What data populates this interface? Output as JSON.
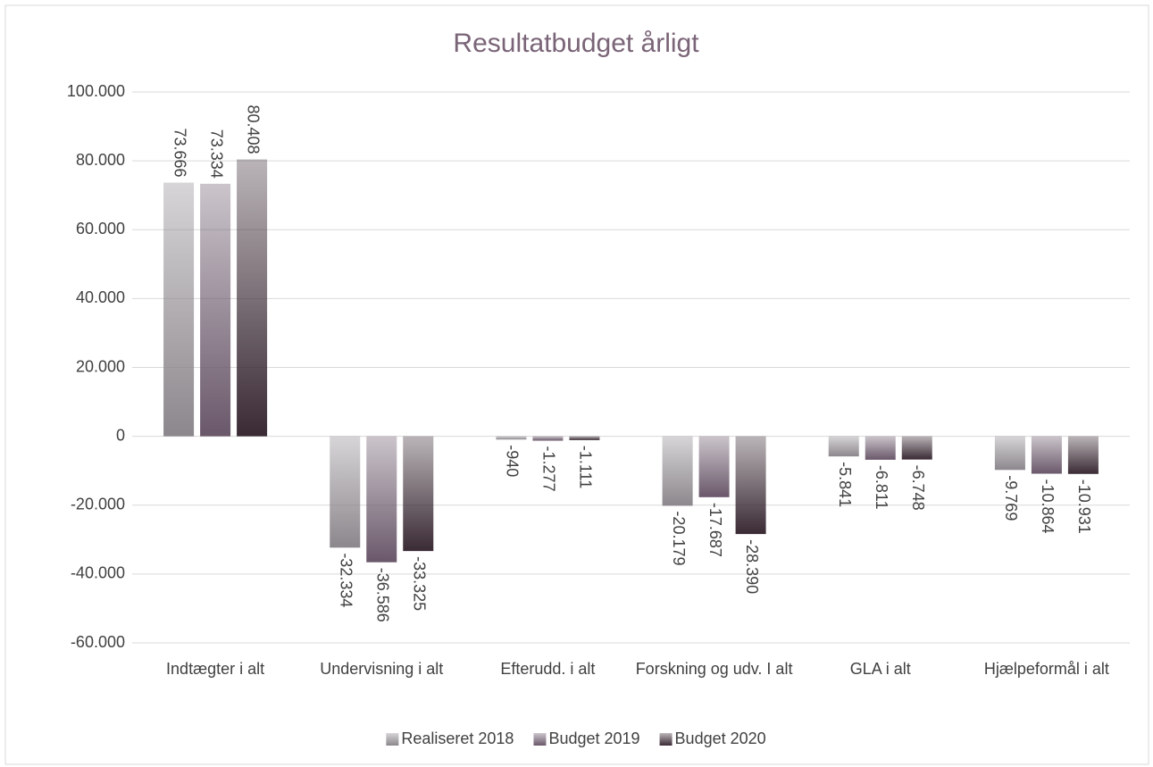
{
  "chart_data": {
    "type": "bar",
    "title": "Resultatbudget årligt",
    "categories": [
      "Indtægter i alt",
      "Undervisning i alt",
      "Efterudd.  i alt",
      "Forskning og udv. I alt",
      "GLA i alt",
      "Hjælpeformål i alt"
    ],
    "series": [
      {
        "name": "Realiseret 2018",
        "color": "#8c878c",
        "values": [
          73666,
          -32334,
          -940,
          -20179,
          -5841,
          -9769
        ],
        "value_labels": [
          "73.666",
          "-32.334",
          "-940",
          "-20.179",
          "-5.841",
          "-9.769"
        ]
      },
      {
        "name": "Budget 2019",
        "color": "#6a586a",
        "values": [
          73334,
          -36586,
          -1277,
          -17687,
          -6811,
          -10864
        ],
        "value_labels": [
          "73.334",
          "-36.586",
          "-1.277",
          "-17.687",
          "-6.811",
          "-10.864"
        ]
      },
      {
        "name": "Budget 2020",
        "color": "#3a2a34",
        "values": [
          80408,
          -33325,
          -1111,
          -28390,
          -6748,
          -10931
        ],
        "value_labels": [
          "80.408",
          "-33.325",
          "-1.111",
          "-28.390",
          "-6.748",
          "-10.931"
        ]
      }
    ],
    "ylim": [
      -60000,
      100000
    ],
    "yticks": [
      {
        "value": -60000,
        "label": "-60.000"
      },
      {
        "value": -40000,
        "label": "-40.000"
      },
      {
        "value": -20000,
        "label": "-20.000"
      },
      0,
      {
        "value": 20000,
        "label": "20.000"
      },
      {
        "value": 40000,
        "label": "40.000"
      },
      {
        "value": 60000,
        "label": "60.000"
      },
      {
        "value": 80000,
        "label": "80.000"
      },
      {
        "value": 100000,
        "label": "100.000"
      }
    ],
    "grid": true,
    "legend": "bottom"
  }
}
